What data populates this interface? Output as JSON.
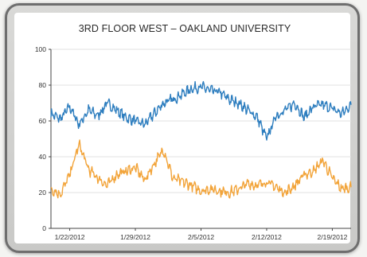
{
  "chart_data": {
    "type": "line",
    "title": "3RD FLOOR WEST – OAKLAND UNIVERSITY",
    "xlabel": "",
    "ylabel": "",
    "ylim": [
      0,
      100
    ],
    "yticks": [
      0,
      20,
      40,
      60,
      80,
      100
    ],
    "xlim": [
      "2012-01-20",
      "2012-02-21"
    ],
    "xticks": [
      {
        "date": "2012-01-22",
        "label": "1/22/2012"
      },
      {
        "date": "2012-01-29",
        "label": "1/29/2012"
      },
      {
        "date": "2012-02-05",
        "label": "2/5/2012"
      },
      {
        "date": "2012-02-12",
        "label": "2/12/2012"
      },
      {
        "date": "2012-02-19",
        "label": "2/19/2012"
      }
    ],
    "grid": true,
    "legend": "none",
    "series": [
      {
        "color": "#2e7ebf",
        "points": [
          [
            "2012-01-20",
            64
          ],
          [
            "2012-01-21",
            61
          ],
          [
            "2012-01-22",
            68
          ],
          [
            "2012-01-23",
            58
          ],
          [
            "2012-01-24",
            66
          ],
          [
            "2012-01-25",
            63
          ],
          [
            "2012-01-26",
            70
          ],
          [
            "2012-01-27",
            66
          ],
          [
            "2012-01-28",
            62
          ],
          [
            "2012-01-29",
            60
          ],
          [
            "2012-01-30",
            58
          ],
          [
            "2012-01-31",
            64
          ],
          [
            "2012-02-01",
            70
          ],
          [
            "2012-02-02",
            72
          ],
          [
            "2012-02-03",
            75
          ],
          [
            "2012-02-04",
            78
          ],
          [
            "2012-02-05",
            79
          ],
          [
            "2012-02-06",
            77
          ],
          [
            "2012-02-07",
            76
          ],
          [
            "2012-02-08",
            72
          ],
          [
            "2012-02-09",
            70
          ],
          [
            "2012-02-10",
            66
          ],
          [
            "2012-02-11",
            62
          ],
          [
            "2012-02-12",
            50
          ],
          [
            "2012-02-13",
            63
          ],
          [
            "2012-02-14",
            66
          ],
          [
            "2012-02-15",
            70
          ],
          [
            "2012-02-16",
            62
          ],
          [
            "2012-02-17",
            68
          ],
          [
            "2012-02-18",
            69
          ],
          [
            "2012-02-19",
            67
          ],
          [
            "2012-02-20",
            64
          ],
          [
            "2012-02-21",
            69
          ]
        ]
      },
      {
        "color": "#f2a43a",
        "points": [
          [
            "2012-01-20",
            22
          ],
          [
            "2012-01-21",
            19
          ],
          [
            "2012-01-22",
            30
          ],
          [
            "2012-01-23",
            47
          ],
          [
            "2012-01-24",
            33
          ],
          [
            "2012-01-25",
            28
          ],
          [
            "2012-01-26",
            24
          ],
          [
            "2012-01-27",
            30
          ],
          [
            "2012-01-28",
            32
          ],
          [
            "2012-01-29",
            34
          ],
          [
            "2012-01-30",
            27
          ],
          [
            "2012-01-31",
            36
          ],
          [
            "2012-02-01",
            44
          ],
          [
            "2012-02-02",
            28
          ],
          [
            "2012-02-03",
            26
          ],
          [
            "2012-02-04",
            24
          ],
          [
            "2012-02-05",
            21
          ],
          [
            "2012-02-06",
            22
          ],
          [
            "2012-02-07",
            21
          ],
          [
            "2012-02-08",
            20
          ],
          [
            "2012-02-09",
            22
          ],
          [
            "2012-02-10",
            25
          ],
          [
            "2012-02-11",
            24
          ],
          [
            "2012-02-12",
            26
          ],
          [
            "2012-02-13",
            23
          ],
          [
            "2012-02-14",
            20
          ],
          [
            "2012-02-15",
            24
          ],
          [
            "2012-02-16",
            30
          ],
          [
            "2012-02-17",
            32
          ],
          [
            "2012-02-18",
            38
          ],
          [
            "2012-02-19",
            28
          ],
          [
            "2012-02-20",
            22
          ],
          [
            "2012-02-21",
            23
          ]
        ]
      }
    ]
  }
}
